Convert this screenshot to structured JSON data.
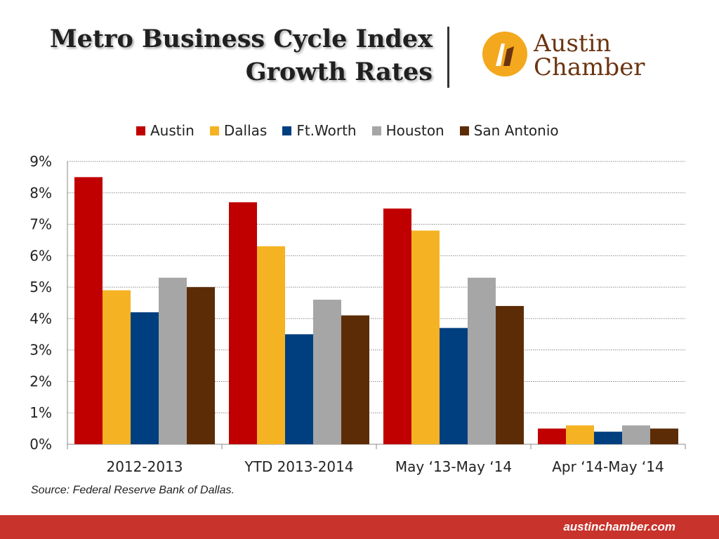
{
  "title_lines": [
    "Metro Business Cycle Index",
    "Growth Rates"
  ],
  "logo": {
    "line1": "Austin",
    "line2": "Chamber",
    "mark_color": "#f4a81d",
    "text_color": "#6b3410"
  },
  "source": "Source: Federal Reserve Bank of Dallas.",
  "footer": {
    "url": "austinchamber.com",
    "color": "#c8332b"
  },
  "chart_data": {
    "type": "bar",
    "categories": [
      "2012-2013",
      "YTD 2013-2014",
      "May ‘13-May ‘14",
      "Apr ‘14-May ‘14"
    ],
    "series": [
      {
        "name": "Austin",
        "color": "#c00000",
        "values": [
          8.5,
          7.7,
          7.5,
          0.5
        ]
      },
      {
        "name": "Dallas",
        "color": "#f5b323",
        "values": [
          4.9,
          6.3,
          6.8,
          0.6
        ]
      },
      {
        "name": "Ft.Worth",
        "color": "#003f7f",
        "values": [
          4.2,
          3.5,
          3.7,
          0.4
        ]
      },
      {
        "name": "Houston",
        "color": "#a6a6a6",
        "values": [
          5.3,
          4.6,
          5.3,
          0.6
        ]
      },
      {
        "name": "San Antonio",
        "color": "#5c2c06",
        "values": [
          5.0,
          4.1,
          4.4,
          0.5
        ]
      }
    ],
    "y_ticks": [
      "0%",
      "1%",
      "2%",
      "3%",
      "4%",
      "5%",
      "6%",
      "7%",
      "8%",
      "9%"
    ],
    "ylim": [
      0,
      9
    ],
    "grid": true,
    "legend_position": "top"
  }
}
